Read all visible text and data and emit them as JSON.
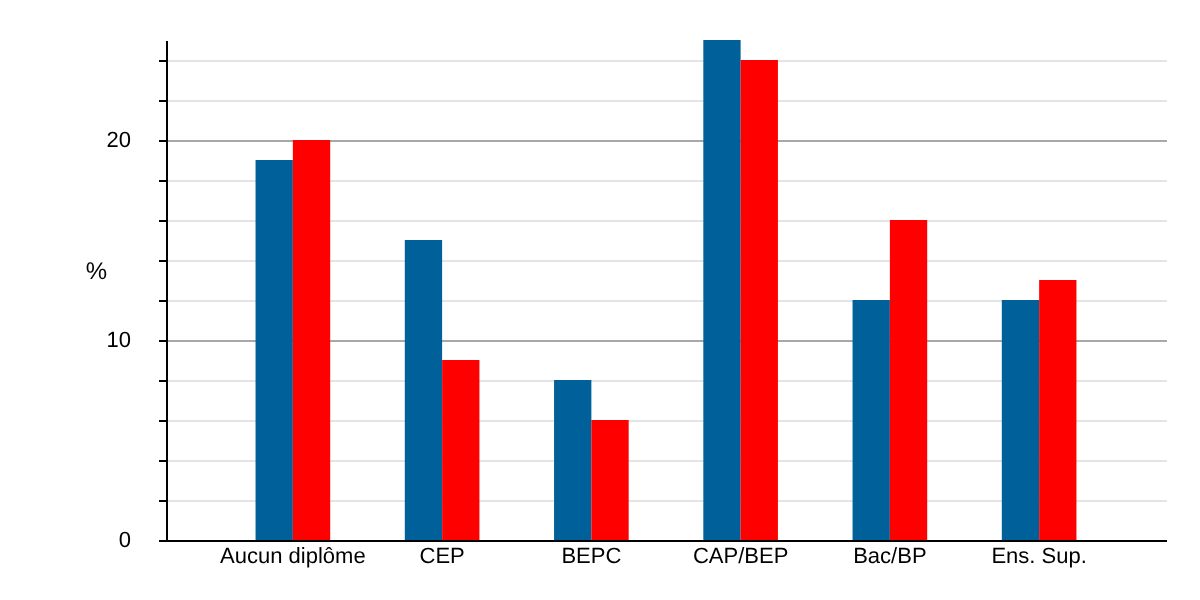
{
  "chart_data": {
    "type": "bar",
    "ylabel": "%",
    "categories": [
      "Aucun diplôme",
      "CEP",
      "BEPC",
      "CAP/BEP",
      "Bac/BP",
      "Ens. Sup."
    ],
    "series": [
      {
        "color": "#00609a",
        "values": [
          19,
          15,
          8,
          25,
          12,
          12
        ]
      },
      {
        "color": "#ff0000",
        "values": [
          20,
          9,
          6,
          24,
          16,
          13
        ]
      }
    ],
    "ylim": [
      0,
      25
    ],
    "yticks": [
      0,
      {
        "value": 2,
        "label": null
      },
      {
        "value": 4,
        "label": null
      },
      {
        "value": 6,
        "label": null
      },
      {
        "value": 8,
        "label": null
      },
      10,
      {
        "value": 12,
        "label": null
      },
      {
        "value": 14,
        "label": null
      },
      {
        "value": 16,
        "label": null
      },
      {
        "value": 18,
        "label": null
      },
      20,
      {
        "value": 22,
        "label": null
      },
      {
        "value": 24,
        "label": null
      }
    ],
    "grid": true,
    "legend": false
  }
}
